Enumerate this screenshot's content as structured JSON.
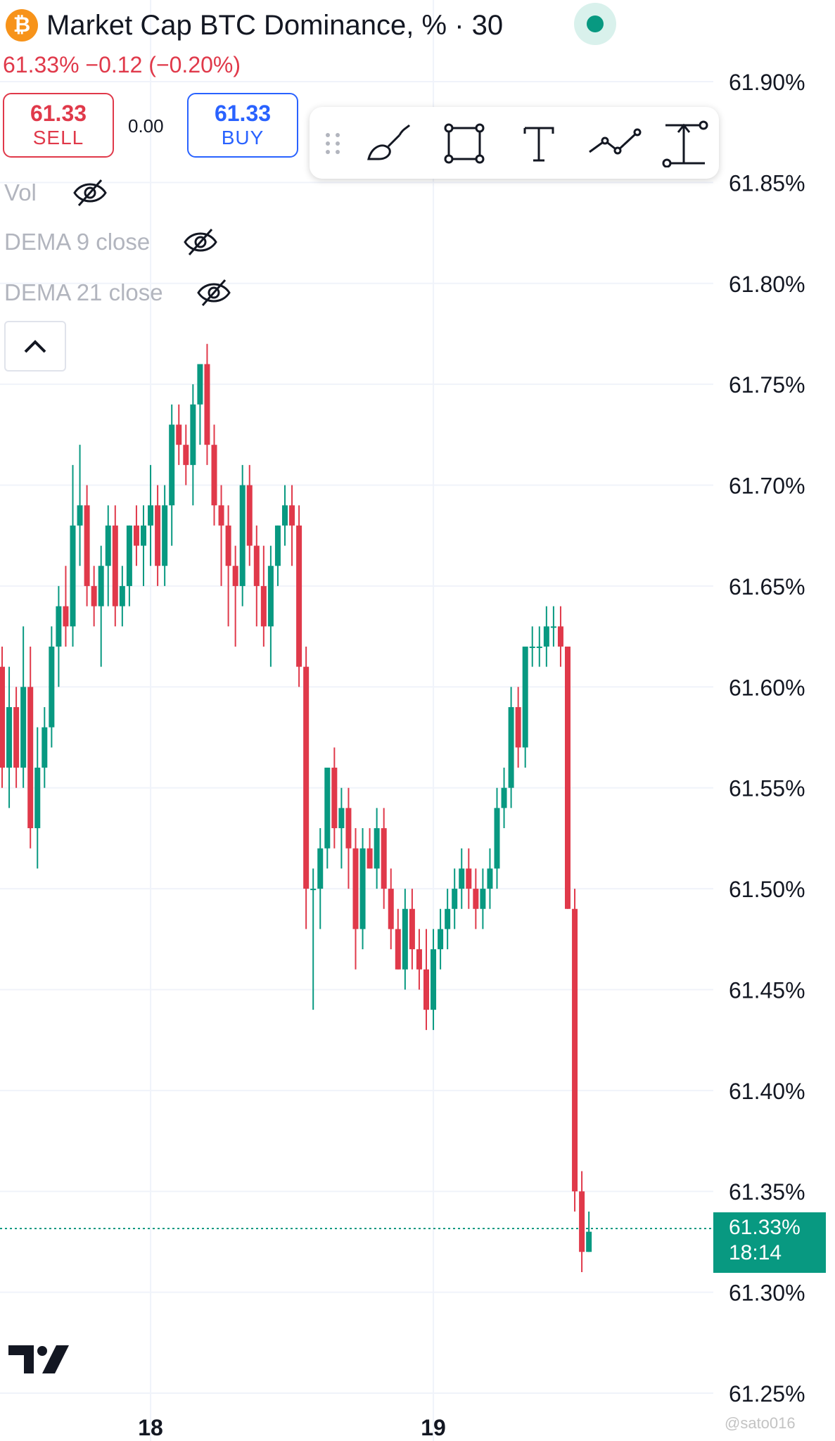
{
  "header": {
    "symbol_icon": "bitcoin-icon",
    "title": "Market Cap BTC Dominance, % · 30",
    "change_text": "61.33%  −0.12 (−0.20%)",
    "live_status_icon": "live-dot-icon"
  },
  "trade": {
    "sell_price": "61.33",
    "sell_label": "SELL",
    "spread": "0.00",
    "buy_price": "61.33",
    "buy_label": "BUY"
  },
  "toolbar": {
    "icons": [
      "drag-handle-icon",
      "brush-icon",
      "rectangle-icon",
      "text-icon",
      "path-icon",
      "measure-icon"
    ]
  },
  "indicators": [
    {
      "label": "Vol",
      "icon": "eye-off-icon"
    },
    {
      "label": "DEMA 9 close",
      "icon": "eye-off-icon"
    },
    {
      "label": "DEMA 21 close",
      "icon": "eye-off-icon"
    }
  ],
  "collapse_icon": "chevron-up-icon",
  "last_price": {
    "value": "61.33%",
    "countdown": "18:14"
  },
  "watermark": "@sato016",
  "colors": {
    "up": "#089981",
    "down": "#e0394a",
    "accent": "#2962ff"
  },
  "chart_data": {
    "type": "candlestick",
    "interval": "30",
    "y_unit": "%",
    "ylim": [
      61.25,
      61.9
    ],
    "y_ticks": [
      "61.90%",
      "61.85%",
      "61.80%",
      "61.75%",
      "61.70%",
      "61.65%",
      "61.60%",
      "61.55%",
      "61.50%",
      "61.45%",
      "61.40%",
      "61.35%",
      "61.30%",
      "61.25%"
    ],
    "x_ticks": [
      {
        "label": "18",
        "index": 21
      },
      {
        "label": "19",
        "index": 61
      }
    ],
    "grid": true,
    "candles": [
      [
        61.61,
        61.62,
        61.55,
        61.56
      ],
      [
        61.56,
        61.61,
        61.54,
        61.59
      ],
      [
        61.59,
        61.6,
        61.55,
        61.56
      ],
      [
        61.56,
        61.63,
        61.55,
        61.6
      ],
      [
        61.6,
        61.62,
        61.52,
        61.53
      ],
      [
        61.53,
        61.58,
        61.51,
        61.56
      ],
      [
        61.56,
        61.59,
        61.55,
        61.58
      ],
      [
        61.58,
        61.63,
        61.57,
        61.62
      ],
      [
        61.62,
        61.65,
        61.6,
        61.64
      ],
      [
        61.64,
        61.66,
        61.62,
        61.63
      ],
      [
        61.63,
        61.71,
        61.62,
        61.68
      ],
      [
        61.68,
        61.72,
        61.66,
        61.69
      ],
      [
        61.69,
        61.7,
        61.64,
        61.65
      ],
      [
        61.65,
        61.66,
        61.63,
        61.64
      ],
      [
        61.64,
        61.67,
        61.61,
        61.66
      ],
      [
        61.66,
        61.69,
        61.64,
        61.68
      ],
      [
        61.68,
        61.69,
        61.63,
        61.64
      ],
      [
        61.64,
        61.66,
        61.63,
        61.65
      ],
      [
        61.65,
        61.68,
        61.64,
        61.68
      ],
      [
        61.68,
        61.69,
        61.66,
        61.67
      ],
      [
        61.67,
        61.69,
        61.65,
        61.68
      ],
      [
        61.68,
        61.71,
        61.66,
        61.69
      ],
      [
        61.69,
        61.7,
        61.65,
        61.66
      ],
      [
        61.66,
        61.7,
        61.65,
        61.69
      ],
      [
        61.69,
        61.74,
        61.67,
        61.73
      ],
      [
        61.73,
        61.74,
        61.71,
        61.72
      ],
      [
        61.72,
        61.73,
        61.7,
        61.71
      ],
      [
        61.71,
        61.75,
        61.69,
        61.74
      ],
      [
        61.74,
        61.76,
        61.72,
        61.76
      ],
      [
        61.76,
        61.77,
        61.71,
        61.72
      ],
      [
        61.72,
        61.73,
        61.68,
        61.69
      ],
      [
        61.69,
        61.7,
        61.65,
        61.68
      ],
      [
        61.68,
        61.69,
        61.63,
        61.66
      ],
      [
        61.66,
        61.67,
        61.62,
        61.65
      ],
      [
        61.65,
        61.71,
        61.64,
        61.7
      ],
      [
        61.7,
        61.71,
        61.66,
        61.67
      ],
      [
        61.67,
        61.68,
        61.63,
        61.65
      ],
      [
        61.65,
        61.67,
        61.62,
        61.63
      ],
      [
        61.63,
        61.67,
        61.61,
        61.66
      ],
      [
        61.66,
        61.68,
        61.65,
        61.68
      ],
      [
        61.68,
        61.7,
        61.67,
        61.69
      ],
      [
        61.69,
        61.7,
        61.66,
        61.68
      ],
      [
        61.68,
        61.69,
        61.6,
        61.61
      ],
      [
        61.61,
        61.62,
        61.48,
        61.5
      ],
      [
        61.5,
        61.51,
        61.44,
        61.5
      ],
      [
        61.5,
        61.53,
        61.48,
        61.52
      ],
      [
        61.52,
        61.56,
        61.51,
        61.56
      ],
      [
        61.56,
        61.57,
        61.52,
        61.53
      ],
      [
        61.53,
        61.55,
        61.51,
        61.54
      ],
      [
        61.54,
        61.55,
        61.5,
        61.52
      ],
      [
        61.52,
        61.53,
        61.46,
        61.48
      ],
      [
        61.48,
        61.53,
        61.47,
        61.52
      ],
      [
        61.52,
        61.53,
        61.51,
        61.51
      ],
      [
        61.51,
        61.54,
        61.5,
        61.53
      ],
      [
        61.53,
        61.54,
        61.49,
        61.5
      ],
      [
        61.5,
        61.51,
        61.47,
        61.48
      ],
      [
        61.48,
        61.49,
        61.46,
        61.46
      ],
      [
        61.46,
        61.5,
        61.45,
        61.49
      ],
      [
        61.49,
        61.5,
        61.46,
        61.47
      ],
      [
        61.47,
        61.48,
        61.45,
        61.46
      ],
      [
        61.46,
        61.48,
        61.43,
        61.44
      ],
      [
        61.44,
        61.48,
        61.43,
        61.47
      ],
      [
        61.47,
        61.49,
        61.46,
        61.48
      ],
      [
        61.48,
        61.5,
        61.47,
        61.49
      ],
      [
        61.49,
        61.51,
        61.48,
        61.5
      ],
      [
        61.5,
        61.52,
        61.49,
        61.51
      ],
      [
        61.51,
        61.52,
        61.49,
        61.5
      ],
      [
        61.5,
        61.51,
        61.48,
        61.49
      ],
      [
        61.49,
        61.51,
        61.48,
        61.5
      ],
      [
        61.5,
        61.52,
        61.49,
        61.51
      ],
      [
        61.51,
        61.55,
        61.5,
        61.54
      ],
      [
        61.54,
        61.56,
        61.53,
        61.55
      ],
      [
        61.55,
        61.6,
        61.54,
        61.59
      ],
      [
        61.59,
        61.6,
        61.56,
        61.57
      ],
      [
        61.57,
        61.62,
        61.56,
        61.62
      ],
      [
        61.62,
        61.63,
        61.61,
        61.62
      ],
      [
        61.62,
        61.63,
        61.61,
        61.62
      ],
      [
        61.62,
        61.64,
        61.61,
        61.63
      ],
      [
        61.63,
        61.64,
        61.62,
        61.63
      ],
      [
        61.63,
        61.64,
        61.61,
        61.62
      ],
      [
        61.62,
        61.62,
        61.49,
        61.49
      ],
      [
        61.49,
        61.5,
        61.34,
        61.35
      ],
      [
        61.35,
        61.36,
        61.31,
        61.32
      ],
      [
        61.32,
        61.34,
        61.32,
        61.33
      ]
    ]
  }
}
